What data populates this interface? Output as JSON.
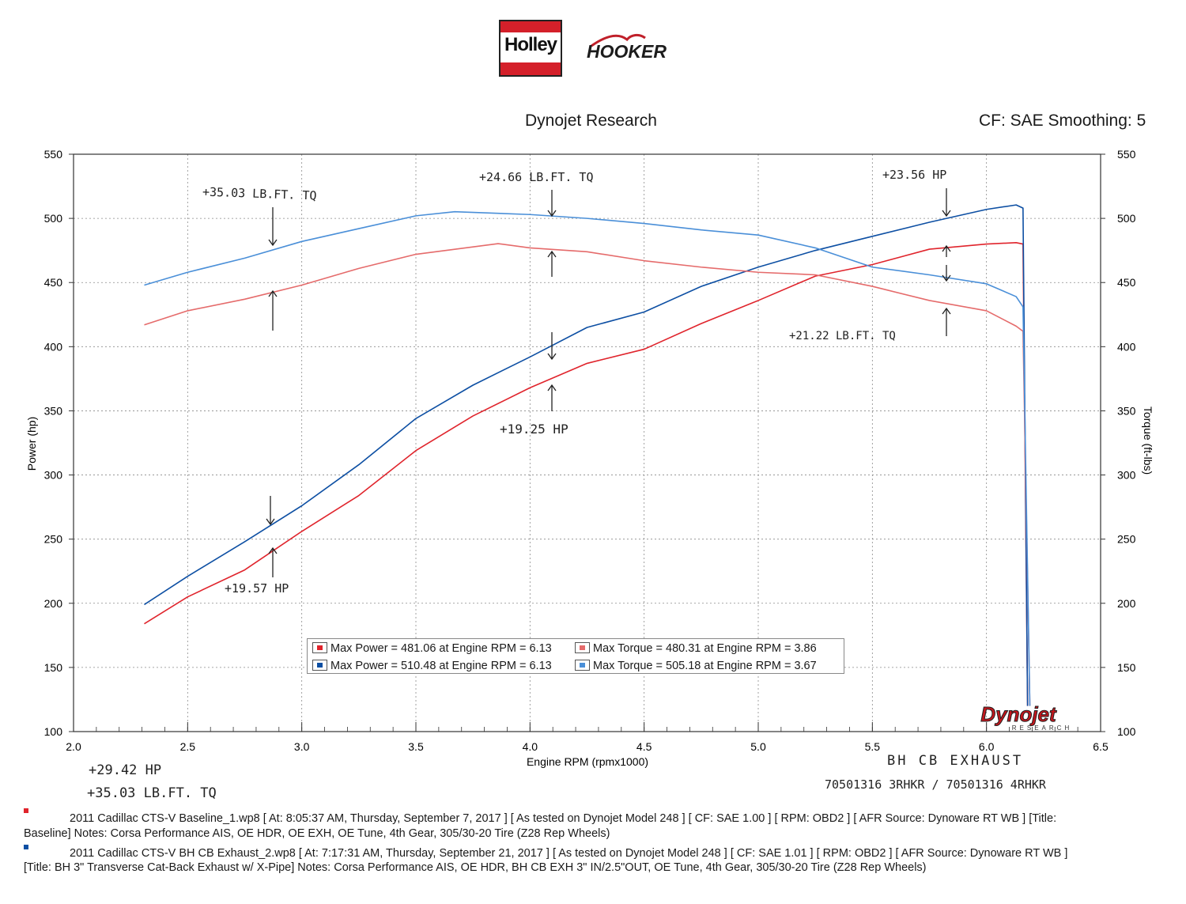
{
  "logos": {
    "holley": "Holley",
    "hooker": "HOOKER"
  },
  "header": {
    "title": "Dynojet Research",
    "right": "CF: SAE Smoothing: 5"
  },
  "chart_data": {
    "type": "line",
    "title": "Dynojet Research",
    "xlabel": "Engine RPM (rpmx1000)",
    "ylabel": "Power (hp)",
    "y2label": "Torque (ft-lbs)",
    "xlim": [
      2.0,
      6.5
    ],
    "ylim": [
      100,
      550
    ],
    "y2lim": [
      100,
      550
    ],
    "xticks": [
      "2.0",
      "2.5",
      "3.0",
      "3.5",
      "4.0",
      "4.5",
      "5.0",
      "5.5",
      "6.0",
      "6.5"
    ],
    "yticks": [
      "100",
      "150",
      "200",
      "250",
      "300",
      "350",
      "400",
      "450",
      "500",
      "550"
    ],
    "grid": true,
    "series": [
      {
        "name": "Max Power = 481.06 at Engine RPM = 6.13",
        "kind": "power",
        "color": "#e0242c",
        "x": [
          2.31,
          2.5,
          2.75,
          3.0,
          3.25,
          3.5,
          3.75,
          4.0,
          4.25,
          4.5,
          4.75,
          5.0,
          5.25,
          5.5,
          5.75,
          6.0,
          6.13,
          6.16
        ],
        "y": [
          184,
          205,
          226,
          256,
          284,
          319,
          346,
          368,
          387,
          398,
          418,
          436,
          455,
          464,
          476,
          480,
          481.06,
          480
        ]
      },
      {
        "name": "Max Power = 510.48 at Engine RPM = 6.13",
        "kind": "power",
        "color": "#0d4fa3",
        "x": [
          2.31,
          2.5,
          2.75,
          3.0,
          3.25,
          3.5,
          3.75,
          4.0,
          4.25,
          4.5,
          4.75,
          5.0,
          5.25,
          5.5,
          5.75,
          6.0,
          6.13,
          6.16
        ],
        "y": [
          199,
          221,
          248,
          276,
          308,
          344,
          370,
          392,
          415,
          427,
          447,
          462,
          475,
          486,
          497,
          507,
          510.48,
          508
        ]
      },
      {
        "name": "Max Torque = 480.31 at Engine RPM = 3.86",
        "kind": "torque",
        "color": "#e56b6b",
        "x": [
          2.31,
          2.5,
          2.75,
          3.0,
          3.25,
          3.5,
          3.86,
          4.0,
          4.25,
          4.5,
          4.75,
          5.0,
          5.25,
          5.5,
          5.75,
          6.0,
          6.13,
          6.16
        ],
        "y": [
          417,
          428,
          437,
          448,
          461,
          472,
          480.31,
          477,
          474,
          467,
          462,
          458,
          456,
          447,
          436,
          428,
          416,
          412
        ]
      },
      {
        "name": "Max Torque = 505.18 at Engine RPM = 3.67",
        "kind": "torque",
        "color": "#4a8fd8",
        "x": [
          2.31,
          2.5,
          2.75,
          3.0,
          3.25,
          3.5,
          3.67,
          4.0,
          4.25,
          4.5,
          4.75,
          5.0,
          5.25,
          5.5,
          5.75,
          6.0,
          6.13,
          6.16
        ],
        "y": [
          448,
          458,
          469,
          482,
          492,
          502,
          505.18,
          503,
          500,
          496,
          491,
          487,
          477,
          462,
          456,
          449,
          439,
          431
        ]
      }
    ],
    "annotations": [
      "+35.03 LB.FT. TQ",
      "+24.66 LB.FT. TQ",
      "+23.56 HP",
      "+21.22 LB.FT. TQ",
      "+19.25 HP",
      "+19.57 HP"
    ]
  },
  "legend": {
    "red_power": "Max Power = 481.06 at Engine RPM = 6.13",
    "blue_power": "Max Power = 510.48 at Engine RPM = 6.13",
    "red_torque": "Max Torque = 480.31 at Engine RPM = 3.86",
    "blue_torque": "Max Torque = 505.18 at Engine RPM = 3.67"
  },
  "watermark": {
    "brand": "Dynojet",
    "sub": "RESEARCH"
  },
  "handwriting": {
    "tq_left": "+35.03 LB.FT. TQ",
    "tq_mid": "+24.66 LB.FT. TQ",
    "hp_right": "+23.56 HP",
    "tq_right": "+21.22 LB.FT. TQ",
    "hp_mid": "+19.25 HP",
    "hp_left": "+19.57 HP",
    "summary_hp": "+29.42 HP",
    "summary_tq": "+35.03 LB.FT. TQ",
    "exhaust": "BH CB EXHAUST",
    "part_numbers": "70501316 3RHKR / 70501316 4RHKR"
  },
  "notes": {
    "run1_line1": "2011 Cadillac CTS-V Baseline_1.wp8 [ At: 8:05:37 AM, Thursday, September 7, 2017 ] [ As tested on Dynojet Model 248 ] [ CF: SAE 1.00 ] [ RPM: OBD2 ] [ AFR Source: Dynoware RT WB ] [Title:",
    "run1_line2": "Baseline]  Notes: Corsa Performance AIS, OE HDR, OE EXH, OE Tune, 4th Gear, 305/30-20 Tire (Z28 Rep Wheels)",
    "run2_line1": "2011 Cadillac CTS-V BH CB Exhaust_2.wp8 [ At: 7:17:31 AM, Thursday, September 21, 2017 ] [ As tested on Dynojet Model 248 ] [ CF: SAE 1.01 ] [ RPM: OBD2 ] [ AFR Source: Dynoware RT WB ]",
    "run2_line2": "[Title: BH 3\" Transverse Cat-Back Exhaust w/ X-Pipe]  Notes: Corsa Performance AIS, OE HDR, BH CB EXH 3\" IN/2.5\"OUT, OE Tune, 4th Gear, 305/30-20 Tire (Z28 Rep Wheels)",
    "marker_red": "#e0242c",
    "marker_blue": "#0d4fa3"
  }
}
